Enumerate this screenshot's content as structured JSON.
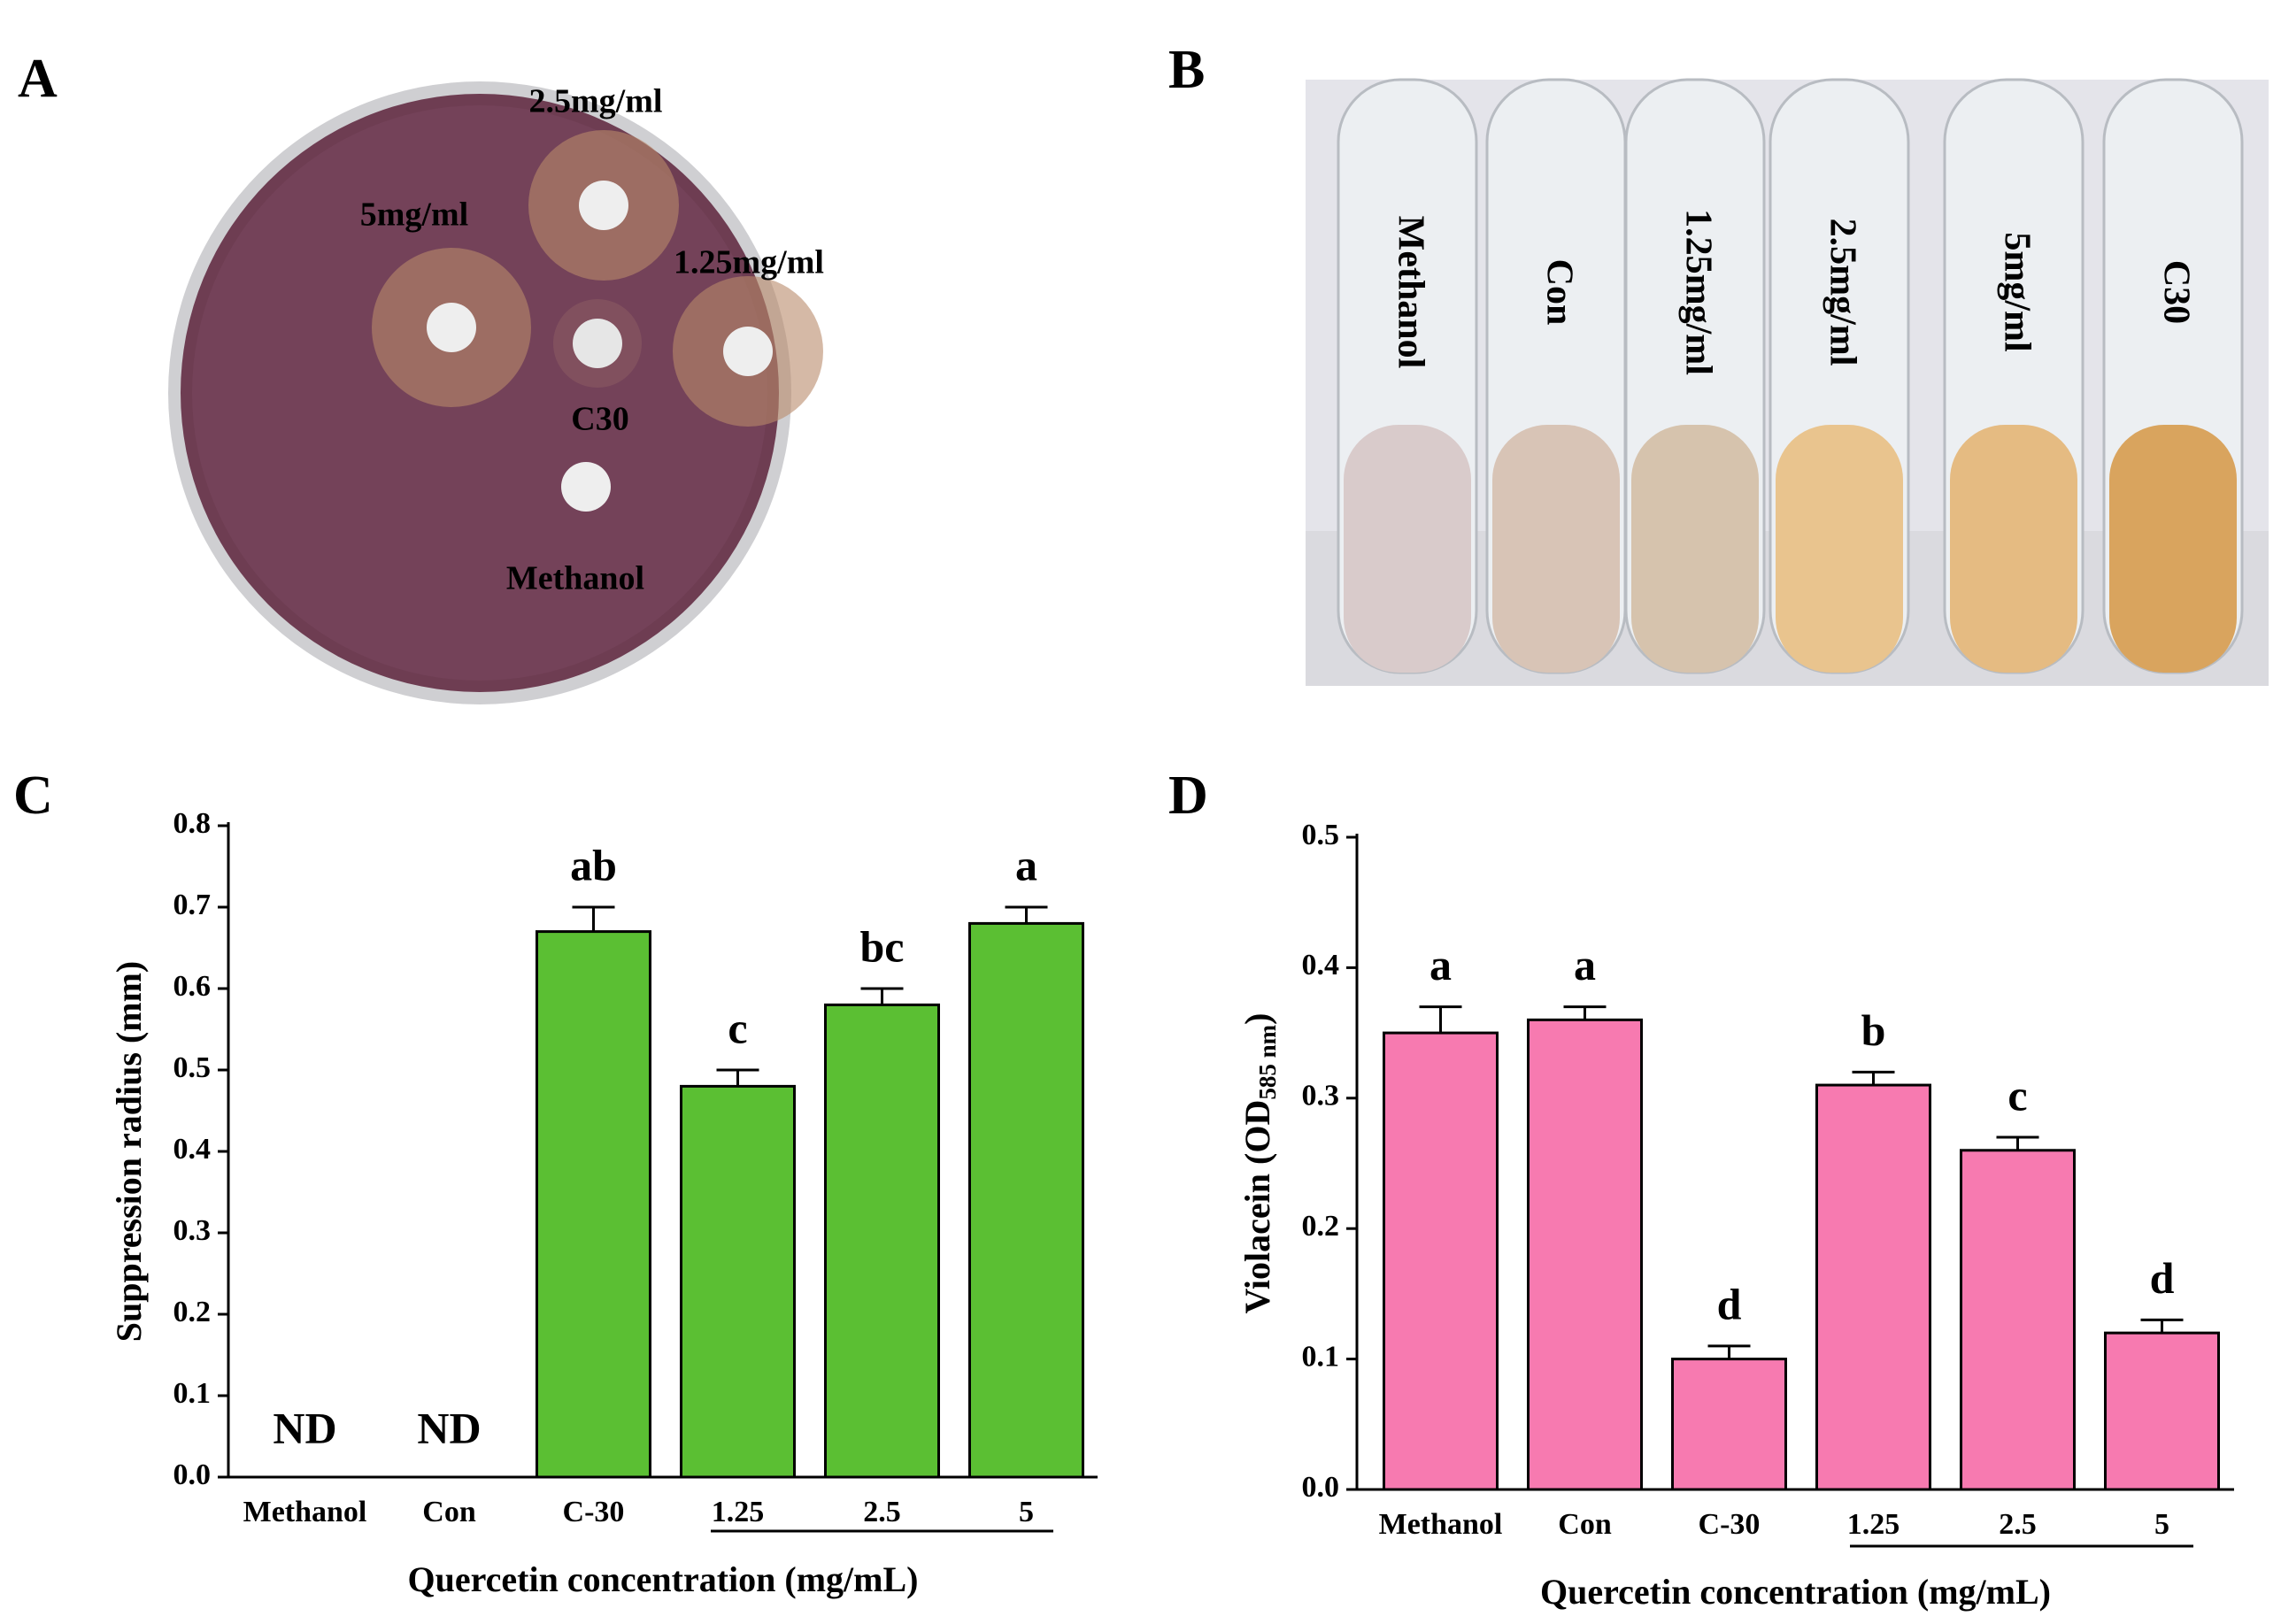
{
  "photos": [
    {
      "panel_label": "A",
      "labels": [
        "2.5mg/ml",
        "5mg/ml",
        "1.25mg/ml",
        "C30",
        "Methanol"
      ]
    },
    {
      "panel_label": "B",
      "labels": [
        "Methanol",
        "Con",
        "1.25mg/ml",
        "2.5mg/ml",
        "5mg/ml",
        "C30"
      ]
    }
  ],
  "chart_data": [
    {
      "type": "bar",
      "panel_label": "C",
      "xlabel": "Quercetin concentration (mg/mL)",
      "ylabel": {
        "text": "Suppression radius (mm)"
      },
      "categories": [
        "Methanol",
        "Con",
        "C-30",
        "1.25",
        "2.5",
        "5"
      ],
      "values": [
        null,
        null,
        0.67,
        0.48,
        0.58,
        0.68
      ],
      "errors": [
        null,
        null,
        0.03,
        0.02,
        0.02,
        0.02
      ],
      "significance": [
        "ND",
        "ND",
        "ab",
        "c",
        "bc",
        "a"
      ],
      "color": "#5bbf33",
      "ylim": [
        0,
        0.8
      ],
      "yticks": [
        {
          "value": 0,
          "label": "0.0"
        },
        0.1,
        0.2,
        0.3,
        0.4,
        0.5,
        0.6,
        0.7,
        0.8
      ]
    },
    {
      "type": "bar",
      "panel_label": "D",
      "xlabel": "Quercetin concentration (mg/mL)",
      "ylabel": {
        "text": "Violacein (OD",
        "sub": "585 nm",
        "end": ")"
      },
      "categories": [
        "Methanol",
        "Con",
        "C-30",
        "1.25",
        "2.5",
        "5"
      ],
      "values": [
        0.35,
        0.36,
        0.1,
        0.31,
        0.26,
        0.12
      ],
      "errors": [
        0.02,
        0.01,
        0.01,
        0.01,
        0.01,
        0.01
      ],
      "significance": [
        "a",
        "a",
        "d",
        "b",
        "c",
        "d"
      ],
      "color": "#f77ab0",
      "ylim": [
        0,
        0.5
      ],
      "yticks": [
        {
          "value": 0,
          "label": "0.0"
        },
        0.1,
        0.2,
        0.3,
        0.4,
        0.5
      ]
    }
  ]
}
